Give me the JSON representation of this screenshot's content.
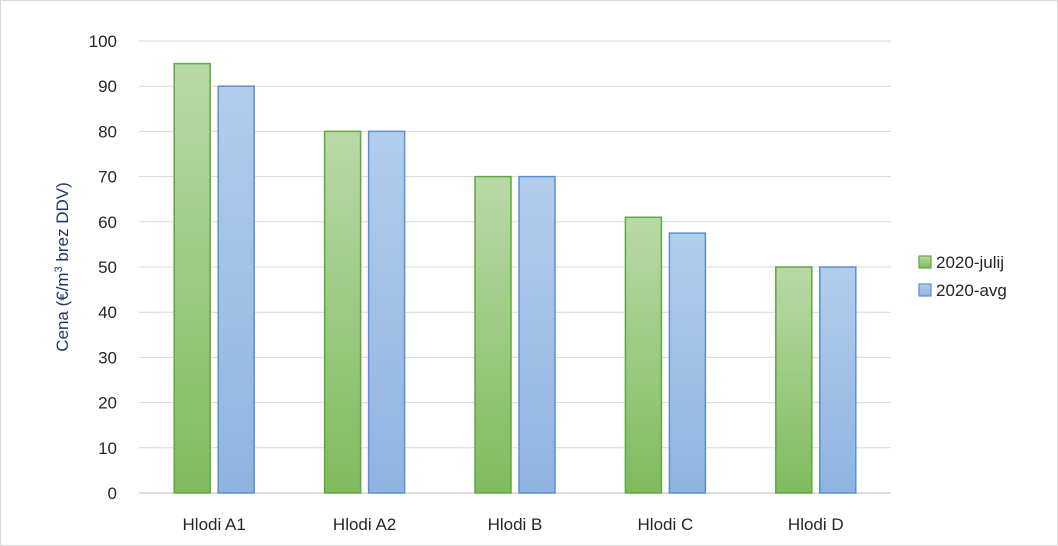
{
  "chart_data": {
    "type": "bar",
    "title": "",
    "xlabel": "",
    "ylabel": {
      "prefix": "Cena (€/m",
      "sup": "3",
      "suffix": " brez DDV)"
    },
    "categories": [
      "Hlodi A1",
      "Hlodi A2",
      "Hlodi B",
      "Hlodi C",
      "Hlodi D"
    ],
    "series": [
      {
        "name": "2020-julij",
        "values": [
          95,
          80,
          70,
          61,
          50
        ],
        "color_top": "#b9d9a6",
        "color_bottom": "#7fbb5e",
        "stroke": "#5ea83f"
      },
      {
        "name": "2020-avg",
        "values": [
          90,
          80,
          70,
          57.5,
          50
        ],
        "color_top": "#b3cdeb",
        "color_bottom": "#8fb3e2",
        "stroke": "#5b8fd1"
      }
    ],
    "ylim": [
      0,
      100
    ],
    "yticks": [
      "0",
      "10",
      "20",
      "30",
      "40",
      "50",
      "60",
      "70",
      "80",
      "90",
      "100"
    ],
    "grid": true,
    "legend_position": "right"
  }
}
